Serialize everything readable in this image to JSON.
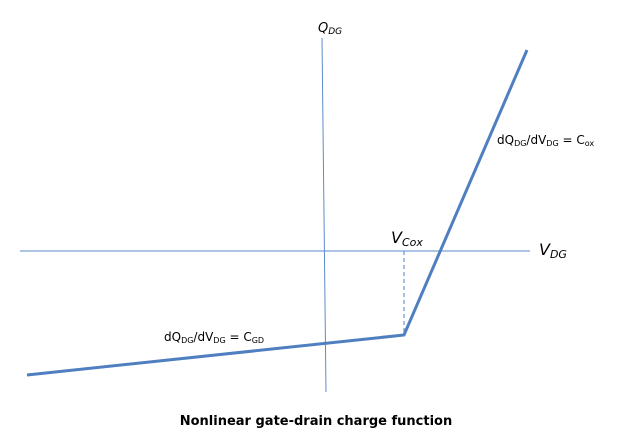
{
  "colors": {
    "axis": "#5B8BC9",
    "curve": "#4F7FC0",
    "text": "#000000"
  },
  "labels": {
    "y_axis": {
      "main": "Q",
      "sub": "DG"
    },
    "x_axis": {
      "main": "V",
      "sub": "DG"
    },
    "vcox": {
      "main": "V",
      "sub": "Cox"
    },
    "slope_high": {
      "p1": "dQ",
      "s1": "DG",
      "p2": "/dV",
      "s2": "DG",
      "p3": " = C",
      "s3": "ox"
    },
    "slope_low": {
      "p1": "dQ",
      "s1": "DG",
      "p2": "/dV",
      "s2": "DG",
      "p3": " = C",
      "s3": "GD"
    },
    "caption": "Nonlinear gate-drain charge function"
  }
}
